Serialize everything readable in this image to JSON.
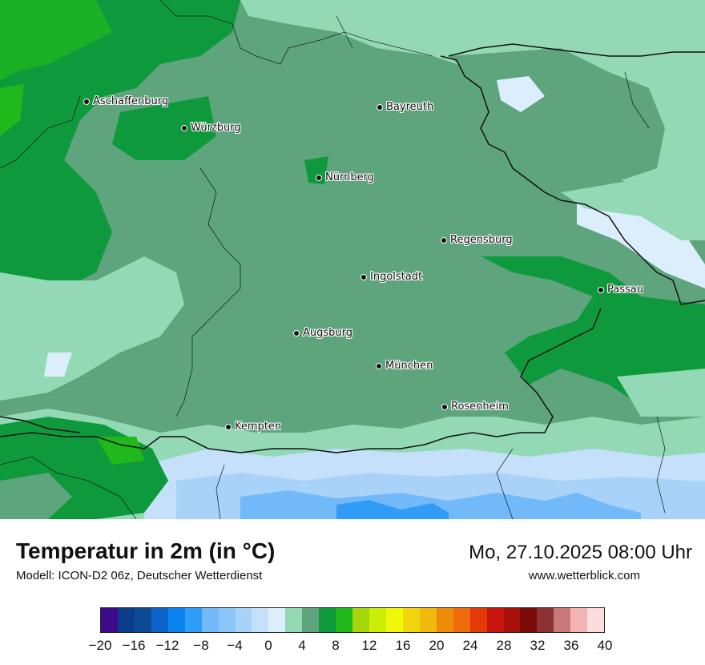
{
  "map": {
    "cities": [
      {
        "name": "Aschaffenburg"
      },
      {
        "name": "Würzburg"
      },
      {
        "name": "Bayreuth"
      },
      {
        "name": "Nürnberg"
      },
      {
        "name": "Regensburg"
      },
      {
        "name": "Ingolstadt"
      },
      {
        "name": "Passau"
      },
      {
        "name": "Augsburg"
      },
      {
        "name": "München"
      },
      {
        "name": "Rosenheim"
      },
      {
        "name": "Kempten"
      }
    ]
  },
  "footer": {
    "title": "Temperatur in 2m (in °C)",
    "model": "Modell: ICON-D2 06z, Deutscher Wetterdienst",
    "datetime": "Mo, 27.10.2025 08:00 Uhr",
    "website": "www.wetterblick.com"
  },
  "legend": {
    "colors": [
      "#3d0a8c",
      "#0a3c8c",
      "#0c4a96",
      "#0b62c8",
      "#0b84f0",
      "#2f9df7",
      "#72b9fa",
      "#8cc6f8",
      "#a8d2f8",
      "#c4e0fa",
      "#dceefc",
      "#93d9b5",
      "#5ea57d",
      "#0e9a3c",
      "#20b81a",
      "#a6d60a",
      "#cbed06",
      "#eef80a",
      "#f2d50c",
      "#f0ba0c",
      "#ee8c0a",
      "#ee6a0a",
      "#e43a0a",
      "#c8140a",
      "#a8100a",
      "#7c0a06",
      "#8c3232",
      "#c87878",
      "#f4b4b4",
      "#fcdcdc"
    ],
    "ticks": [
      "−20",
      "−16",
      "−12",
      "−8",
      "−4",
      "0",
      "4",
      "8",
      "12",
      "16",
      "20",
      "24",
      "28",
      "32",
      "36",
      "40"
    ]
  }
}
